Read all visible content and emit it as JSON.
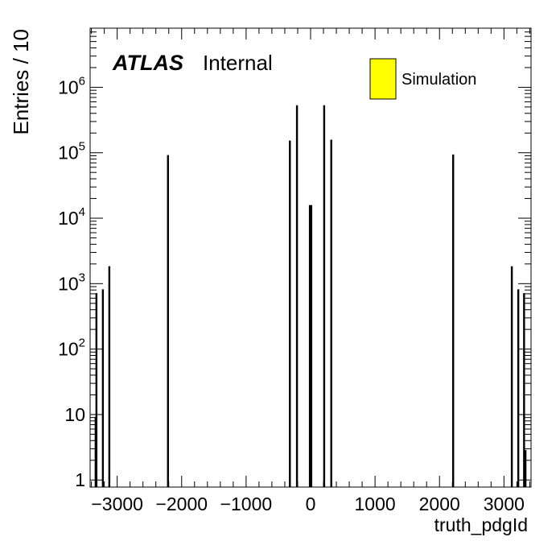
{
  "chart_data": {
    "type": "bar",
    "title": "",
    "xlabel": "truth_pdgId",
    "ylabel": "Entries / 10",
    "yscale": "log",
    "xlim": [
      -3420,
      3420
    ],
    "ylim": [
      0.78,
      8000000
    ],
    "bin_width": 10,
    "grid": false,
    "x_ticks": [
      -3000,
      -2000,
      -1000,
      0,
      1000,
      2000,
      3000
    ],
    "x_tick_labels": [
      "−3000",
      "−2000",
      "−1000",
      "0",
      "1000",
      "2000",
      "3000"
    ],
    "y_ticks": [
      1,
      10,
      100,
      1000,
      10000,
      100000,
      1000000
    ],
    "y_tick_labels": [
      {
        "base": "1",
        "exp": ""
      },
      {
        "base": "10",
        "exp": ""
      },
      {
        "base": "10",
        "exp": "2"
      },
      {
        "base": "10",
        "exp": "3"
      },
      {
        "base": "10",
        "exp": "4"
      },
      {
        "base": "10",
        "exp": "5"
      },
      {
        "base": "10",
        "exp": "6"
      }
    ],
    "legend_position": "top-right",
    "series": [
      {
        "name": "Simulation",
        "fill_color": "#ffff00",
        "points": [
          {
            "x": -3334,
            "y": 9
          },
          {
            "x": -3322,
            "y": 700
          },
          {
            "x": -3222,
            "y": 800
          },
          {
            "x": -3122,
            "y": 1800
          },
          {
            "x": -2212,
            "y": 90000
          },
          {
            "x": -321,
            "y": 150000
          },
          {
            "x": -211,
            "y": 520000
          },
          {
            "x": -11,
            "y": 15500
          },
          {
            "x": 11,
            "y": 15500
          },
          {
            "x": 211,
            "y": 520000
          },
          {
            "x": 321,
            "y": 155000
          },
          {
            "x": 2212,
            "y": 92000
          },
          {
            "x": 3122,
            "y": 1800
          },
          {
            "x": 3222,
            "y": 800
          },
          {
            "x": 3312,
            "y": 700
          },
          {
            "x": 3334,
            "y": 2.8
          }
        ]
      }
    ]
  },
  "atlas_label": {
    "experiment": "ATLAS",
    "status": "Internal"
  },
  "colors": {
    "axis": "#000000",
    "bar_line": "#000000",
    "legend_fill": "#ffff00"
  }
}
